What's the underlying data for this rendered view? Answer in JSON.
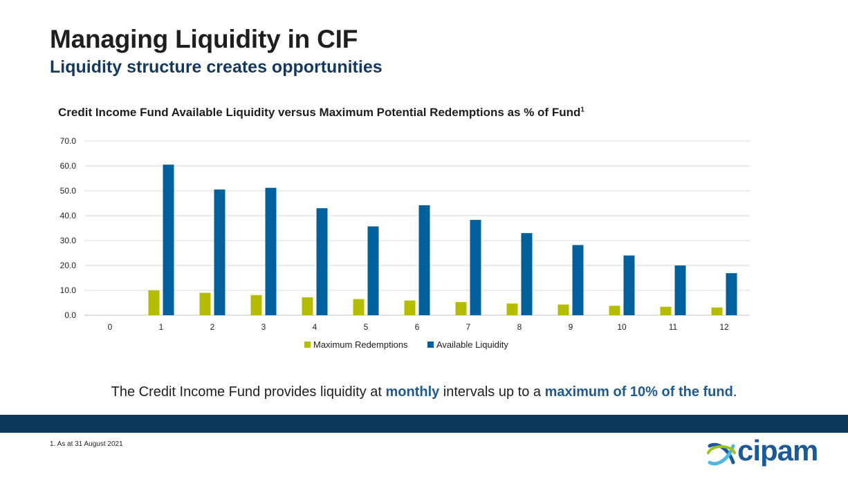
{
  "header": {
    "title": "Managing Liquidity in CIF",
    "subtitle": "Liquidity structure creates opportunities"
  },
  "chart_heading": {
    "text": "Credit Income Fund Available Liquidity versus Maximum Potential Redemptions as % of Fund",
    "superscript": "1"
  },
  "caption": {
    "part1": "The Credit Income Fund provides liquidity at ",
    "em1": "monthly",
    "part2": " intervals up to a ",
    "em2": "maximum of 10% of the fund",
    "part3": "."
  },
  "footnote": "1. As at 31 August 2021",
  "logo": {
    "text": "cipam",
    "icon": "cipam-logo-icon"
  },
  "colors": {
    "redemptions": "#b5bd00",
    "liquidity": "#00609c",
    "grid": "#d9d9d9",
    "band": "#0d3a5a",
    "accent": "#1d5a93"
  },
  "chart_data": {
    "type": "bar",
    "categories": [
      "0",
      "1",
      "2",
      "3",
      "4",
      "5",
      "6",
      "7",
      "8",
      "9",
      "10",
      "11",
      "12"
    ],
    "series": [
      {
        "name": "Maximum Redemptions",
        "values": [
          0,
          10.0,
          9.0,
          8.1,
          7.2,
          6.5,
          5.9,
          5.3,
          4.7,
          4.3,
          3.8,
          3.4,
          3.1
        ]
      },
      {
        "name": "Available Liquidity",
        "values": [
          0,
          60.5,
          50.5,
          51.2,
          43.0,
          35.7,
          44.2,
          38.3,
          33.0,
          28.2,
          24.0,
          20.0,
          16.9
        ]
      }
    ],
    "ylim": [
      0,
      70
    ],
    "yticks": [
      "0.0",
      "10.0",
      "20.0",
      "30.0",
      "40.0",
      "50.0",
      "60.0",
      "70.0"
    ],
    "grid": true,
    "legend": "bottom"
  }
}
